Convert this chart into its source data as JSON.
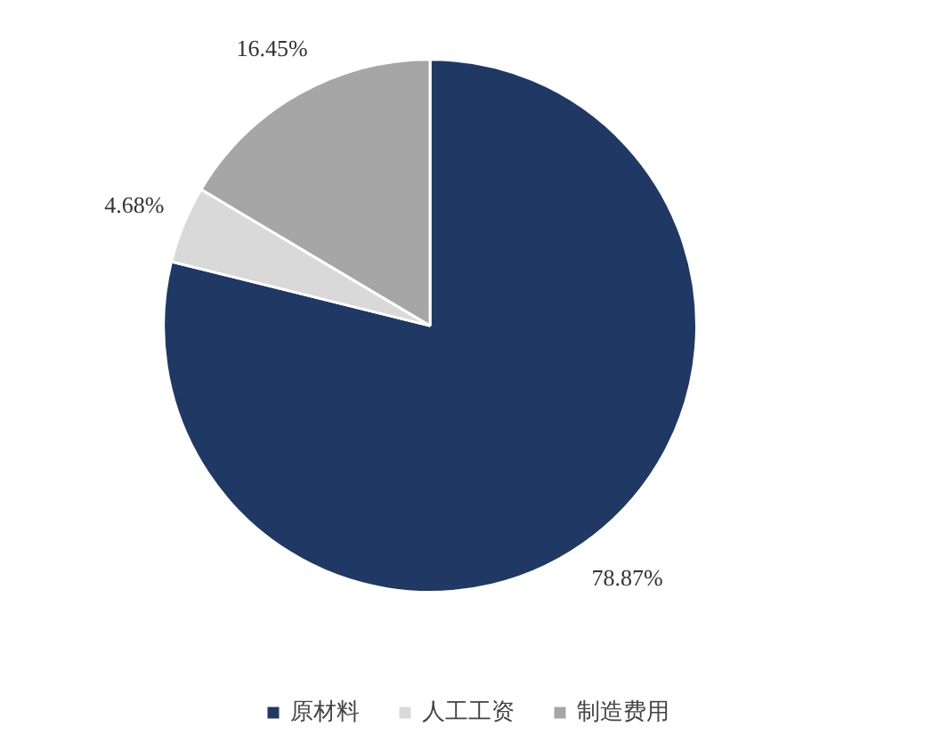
{
  "chart_data": {
    "type": "pie",
    "categories": [
      "原材料",
      "人工工资",
      "制造费用"
    ],
    "values": [
      78.87,
      4.68,
      16.45
    ],
    "colors": [
      "#1f3864",
      "#d9d9d9",
      "#a6a6a6"
    ],
    "value_labels": [
      "78.87%",
      "4.68%",
      "16.45%"
    ],
    "legend": "bottom"
  }
}
